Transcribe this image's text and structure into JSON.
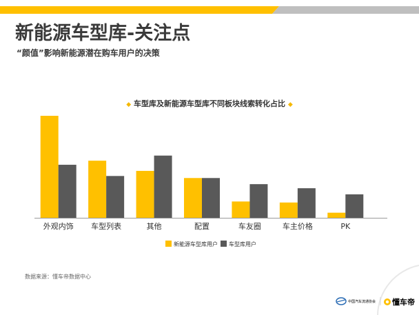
{
  "header": {
    "title": "新能源车型库-关注点",
    "subtitle": "“颜值”影响新能源潜在购车用户的决策"
  },
  "colors": {
    "accent": "#FFC000",
    "dark": "#595959",
    "topbar_light": "#bfbfbf"
  },
  "chart_data": {
    "type": "bar",
    "title": "车型库及新能源车型库不同板块线索转化占比",
    "categories": [
      "外观内饰",
      "车型列表",
      "其他",
      "配置",
      "车友圈",
      "车主价格",
      "PK"
    ],
    "series": [
      {
        "name": "新能源车型库用户",
        "color": "#FFC000",
        "values": [
          100,
          56,
          46,
          39,
          16,
          15,
          5
        ]
      },
      {
        "name": "车型库用户",
        "color": "#595959",
        "values": [
          52,
          41,
          61,
          39,
          33,
          29,
          23
        ]
      }
    ],
    "ylim": [
      0,
      100
    ],
    "grid": false,
    "legend": "bottom-center"
  },
  "footer": {
    "source": "数据来源：懂车帝数据中心",
    "org_logo_text": "中国汽车流通协会",
    "brand_logo_text": "懂车帝"
  }
}
